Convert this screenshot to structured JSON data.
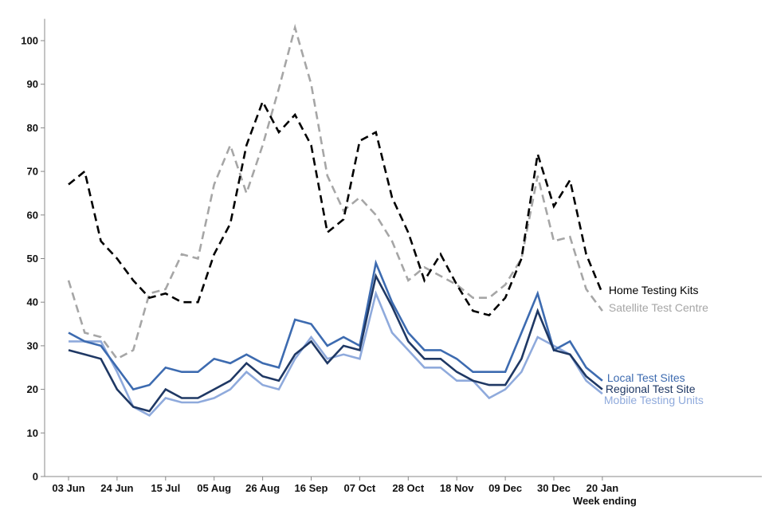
{
  "chart_data": {
    "type": "line",
    "title": "",
    "xlabel": "Week ending",
    "ylabel": "",
    "ylim": [
      0,
      105
    ],
    "yticks": [
      0,
      10,
      20,
      30,
      40,
      50,
      60,
      70,
      80,
      90,
      100
    ],
    "x": [
      "03 Jun",
      "10 Jun",
      "17 Jun",
      "24 Jun",
      "01 Jul",
      "08 Jul",
      "15 Jul",
      "22 Jul",
      "29 Jul",
      "05 Aug",
      "12 Aug",
      "19 Aug",
      "26 Aug",
      "02 Sep",
      "09 Sep",
      "16 Sep",
      "23 Sep",
      "30 Sep",
      "07 Oct",
      "14 Oct",
      "21 Oct",
      "28 Oct",
      "04 Nov",
      "11 Nov",
      "18 Nov",
      "25 Nov",
      "02 Dec",
      "09 Dec",
      "16 Dec",
      "23 Dec",
      "30 Dec",
      "06 Jan",
      "13 Jan",
      "20 Jan"
    ],
    "xticks": [
      "03 Jun",
      "24 Jun",
      "15 Jul",
      "05 Aug",
      "26 Aug",
      "16 Sep",
      "07 Oct",
      "28 Oct",
      "18 Nov",
      "09 Dec",
      "30 Dec",
      "20 Jan"
    ],
    "grid": false,
    "legend": "inline labels at right end of lines",
    "series": [
      {
        "name": "Home Testing Kits",
        "color": "#000000",
        "dashed": true,
        "values": [
          67,
          70,
          54,
          50,
          45,
          41,
          42,
          40,
          40,
          51,
          58,
          76,
          86,
          79,
          83,
          76,
          56,
          59,
          77,
          79,
          64,
          56,
          45,
          51,
          44,
          38,
          37,
          41,
          50,
          74,
          62,
          68,
          51,
          42
        ]
      },
      {
        "name": "Satellite Test Centre",
        "color": "#a6a6a6",
        "dashed": true,
        "values": [
          45,
          33,
          32,
          27,
          29,
          42,
          43,
          51,
          50,
          67,
          76,
          65,
          76,
          89,
          103,
          90,
          69,
          61,
          64,
          60,
          54,
          45,
          48,
          46,
          44,
          41,
          41,
          44,
          50,
          69,
          54,
          55,
          43,
          38
        ]
      },
      {
        "name": "Local Test Sites",
        "color": "#3d6bb0",
        "dashed": false,
        "values": [
          33,
          31,
          30,
          25,
          20,
          21,
          25,
          24,
          24,
          27,
          26,
          28,
          26,
          25,
          36,
          35,
          30,
          32,
          30,
          49,
          40,
          33,
          29,
          29,
          27,
          24,
          24,
          24,
          33,
          42,
          29,
          31,
          25,
          22
        ]
      },
      {
        "name": "Regional Test Site",
        "color": "#1f3864",
        "dashed": false,
        "values": [
          29,
          28,
          27,
          20,
          16,
          15,
          20,
          18,
          18,
          20,
          22,
          26,
          23,
          22,
          28,
          31,
          26,
          30,
          29,
          46,
          39,
          31,
          27,
          27,
          24,
          22,
          21,
          21,
          27,
          38,
          29,
          28,
          23,
          20
        ]
      },
      {
        "name": "Mobile Testing Units",
        "color": "#8faadc",
        "dashed": false,
        "values": [
          31,
          31,
          31,
          24,
          16,
          14,
          18,
          17,
          17,
          18,
          20,
          24,
          21,
          20,
          27,
          32,
          27,
          28,
          27,
          42,
          33,
          29,
          25,
          25,
          22,
          22,
          18,
          20,
          24,
          32,
          30,
          28,
          22,
          19
        ]
      }
    ]
  }
}
